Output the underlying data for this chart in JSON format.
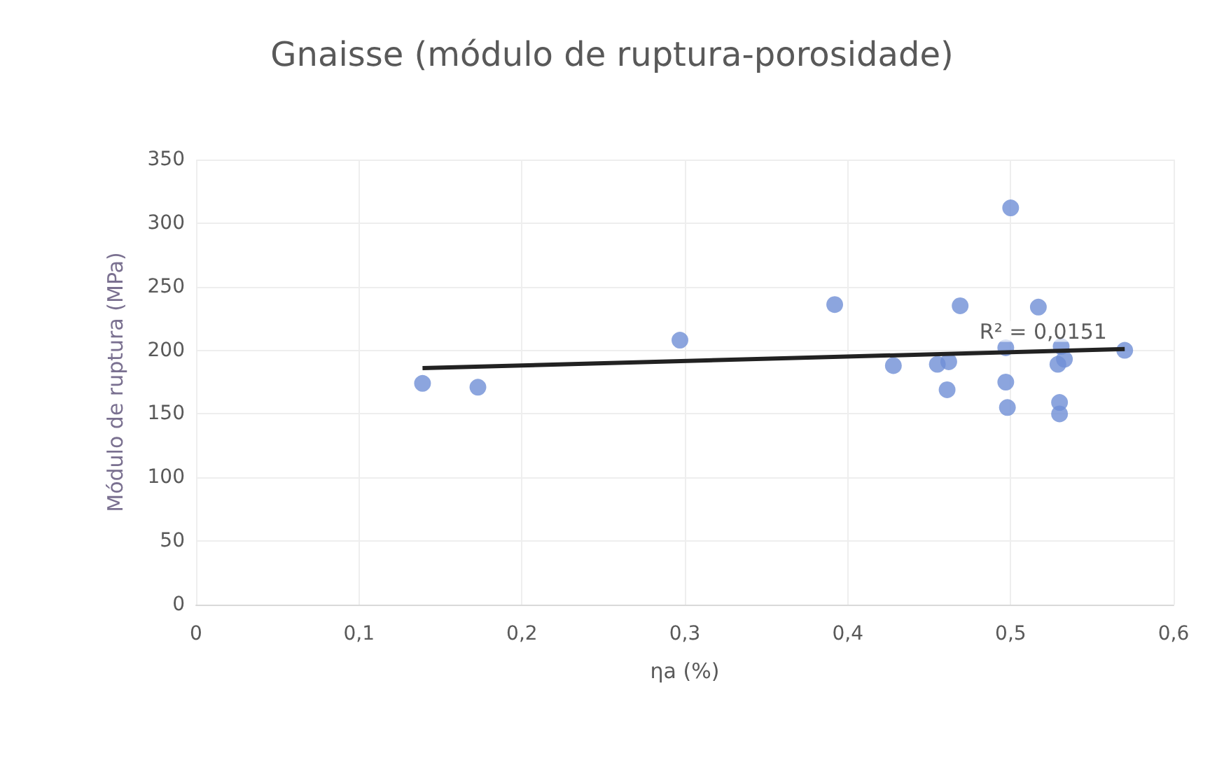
{
  "chart_data": {
    "type": "scatter",
    "title": "Gnaisse (módulo de ruptura-porosidade)",
    "xlabel": "ηa (%)",
    "ylabel": "Módulo de ruptura (MPa)",
    "xlim": [
      0,
      0.6
    ],
    "xticks": [
      {
        "value": 0,
        "label": "0"
      },
      {
        "value": 0.1,
        "label": "0,1"
      },
      {
        "value": 0.2,
        "label": "0,2"
      },
      {
        "value": 0.3,
        "label": "0,3"
      },
      {
        "value": 0.4,
        "label": "0,4"
      },
      {
        "value": 0.5,
        "label": "0,5"
      },
      {
        "value": 0.6,
        "label": "0,6"
      }
    ],
    "ylim": [
      0,
      350
    ],
    "yticks": [
      0,
      50,
      100,
      150,
      200,
      250,
      300,
      350
    ],
    "grid": true,
    "marker": "circle",
    "series": [
      {
        "color": "#6f8fd6",
        "x": [
          0.139,
          0.173,
          0.297,
          0.392,
          0.469,
          0.5,
          0.517,
          0.428,
          0.455,
          0.462,
          0.461,
          0.497,
          0.497,
          0.498,
          0.531,
          0.529,
          0.533,
          0.53,
          0.53,
          0.57
        ],
        "values": [
          174,
          171,
          208,
          236,
          235,
          312,
          234,
          188,
          189,
          191,
          169,
          202,
          175,
          155,
          203,
          189,
          193,
          159,
          150,
          200
        ]
      },
      {
        "type": "line",
        "color": "#222222",
        "marker": "none",
        "line_style": "solid",
        "x": [
          0.139,
          0.57
        ],
        "values": [
          186,
          201
        ]
      }
    ],
    "annotations": [
      {
        "text": "R² = 0,0151",
        "x": 0.52,
        "y": 200
      }
    ]
  }
}
